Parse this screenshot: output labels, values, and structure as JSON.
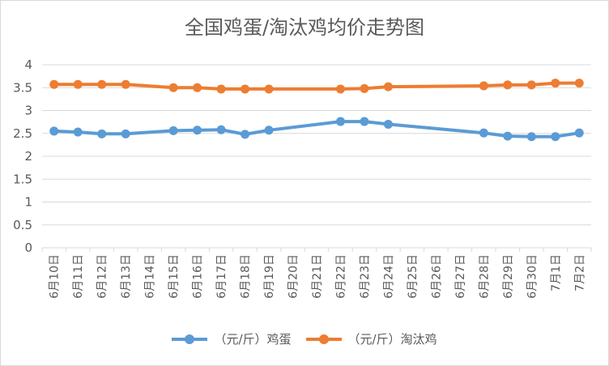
{
  "chart_data": {
    "type": "line",
    "title": "全国鸡蛋/淘汰鸡均价走势图",
    "categories": [
      "6月10日",
      "6月11日",
      "6月12日",
      "6月13日",
      "6月14日",
      "6月15日",
      "6月16日",
      "6月17日",
      "6月18日",
      "6月19日",
      "6月20日",
      "6月21日",
      "6月22日",
      "6月23日",
      "6月24日",
      "6月25日",
      "6月26日",
      "6月27日",
      "6月28日",
      "6月29日",
      "6月30日",
      "7月1日",
      "7月2日"
    ],
    "ylim": [
      0,
      4
    ],
    "yticks": [
      "0",
      "0.5",
      "1",
      "1.5",
      "2",
      "2.5",
      "3",
      "3.5",
      "4"
    ],
    "series": [
      {
        "name": "（元/斤）鸡蛋",
        "color": "#5B9BD5",
        "values": [
          2.55,
          2.53,
          2.49,
          2.49,
          null,
          2.56,
          2.57,
          2.58,
          2.48,
          2.57,
          null,
          null,
          2.76,
          2.76,
          2.7,
          null,
          null,
          null,
          2.51,
          2.44,
          2.43,
          2.43,
          2.51
        ]
      },
      {
        "name": "（元/斤）淘汰鸡",
        "color": "#ED7D31",
        "values": [
          3.57,
          3.57,
          3.57,
          3.57,
          null,
          3.5,
          3.5,
          3.47,
          3.47,
          3.47,
          null,
          null,
          3.47,
          3.48,
          3.52,
          null,
          null,
          null,
          3.54,
          3.56,
          3.56,
          3.6,
          3.6
        ]
      }
    ],
    "grid": true,
    "legend_position": "bottom"
  }
}
